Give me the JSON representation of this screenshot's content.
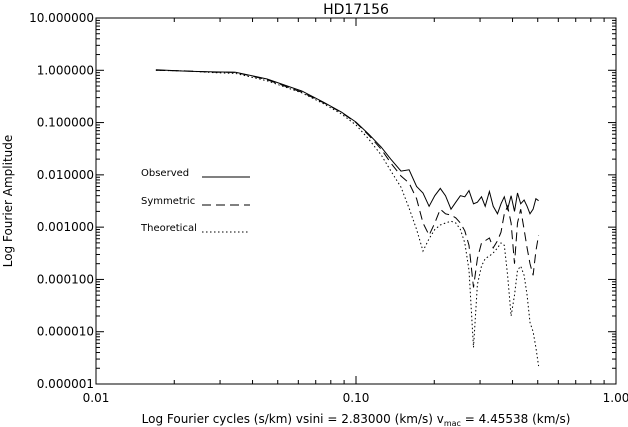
{
  "chart_data": {
    "type": "line",
    "title": "HD17156",
    "xlabel": {
      "prefix": "Log Fourier cycles (s/km) vsini = 2.83000 (km/s) v",
      "subscript": "mac",
      "suffix": " = 4.45538 (km/s)"
    },
    "ylabel": "Log Fourier Amplitude",
    "x_scale": "log",
    "y_scale": "log",
    "xlim": [
      0.01,
      1.0
    ],
    "ylim": [
      1e-06,
      10.0
    ],
    "x_ticks": [
      {
        "value": 0.01,
        "label": "0.01"
      },
      {
        "value": 0.1,
        "label": "0.10"
      },
      {
        "value": 1.0,
        "label": "1.00"
      }
    ],
    "y_ticks": [
      {
        "value": 10,
        "label": "10.000000"
      },
      {
        "value": 1,
        "label": "1.000000"
      },
      {
        "value": 0.1,
        "label": "0.100000"
      },
      {
        "value": 0.01,
        "label": "0.010000"
      },
      {
        "value": 0.001,
        "label": "0.001000"
      },
      {
        "value": 0.0001,
        "label": "0.000100"
      },
      {
        "value": 1e-05,
        "label": "0.000010"
      },
      {
        "value": 1e-06,
        "label": "0.000001"
      }
    ],
    "grid": false,
    "legend_position": "left-middle",
    "series": [
      {
        "name": "Observed",
        "dash": "solid",
        "x": [
          0.017,
          0.0225,
          0.0285,
          0.0344,
          0.0455,
          0.062,
          0.075,
          0.088,
          0.1,
          0.112,
          0.125,
          0.136,
          0.149,
          0.16,
          0.171,
          0.181,
          0.191,
          0.201,
          0.211,
          0.221,
          0.232,
          0.242,
          0.252,
          0.262,
          0.272,
          0.283,
          0.293,
          0.304,
          0.314,
          0.326,
          0.337,
          0.35,
          0.361,
          0.372,
          0.383,
          0.395,
          0.407,
          0.418,
          0.43,
          0.443,
          0.455,
          0.467,
          0.48,
          0.492,
          0.504
        ],
        "y": [
          1.02,
          0.96,
          0.93,
          0.92,
          0.68,
          0.4,
          0.245,
          0.158,
          0.102,
          0.06,
          0.034,
          0.02,
          0.0118,
          0.0125,
          0.006,
          0.0045,
          0.0025,
          0.004,
          0.0055,
          0.004,
          0.0022,
          0.003,
          0.004,
          0.0038,
          0.005,
          0.0028,
          0.003,
          0.0038,
          0.0025,
          0.0048,
          0.0025,
          0.0018,
          0.0028,
          0.0038,
          0.0022,
          0.004,
          0.002,
          0.0045,
          0.0028,
          0.0033,
          0.0025,
          0.0018,
          0.0022,
          0.0035,
          0.0032
        ]
      },
      {
        "name": "Symmetric",
        "dash": "dashed",
        "x": [
          0.017,
          0.0225,
          0.0285,
          0.0344,
          0.0455,
          0.062,
          0.075,
          0.088,
          0.1,
          0.112,
          0.125,
          0.136,
          0.149,
          0.16,
          0.171,
          0.181,
          0.191,
          0.201,
          0.211,
          0.221,
          0.232,
          0.242,
          0.252,
          0.262,
          0.272,
          0.283,
          0.293,
          0.304,
          0.314,
          0.326,
          0.337,
          0.35,
          0.361,
          0.372,
          0.383,
          0.395,
          0.407,
          0.418,
          0.43,
          0.443,
          0.455,
          0.467,
          0.48,
          0.492,
          0.504
        ],
        "y": [
          1.0,
          0.97,
          0.92,
          0.91,
          0.66,
          0.38,
          0.24,
          0.155,
          0.1,
          0.057,
          0.031,
          0.017,
          0.0095,
          0.007,
          0.0035,
          0.0012,
          0.0007,
          0.0012,
          0.0022,
          0.0018,
          0.0017,
          0.0015,
          0.0012,
          0.00085,
          0.00045,
          7e-05,
          0.00025,
          0.0005,
          0.00055,
          0.00062,
          0.0004,
          0.00055,
          0.0008,
          0.0018,
          0.0025,
          0.0012,
          0.0002,
          0.0012,
          0.0022,
          0.0009,
          0.0004,
          0.0002,
          0.00012,
          0.00035,
          0.0007
        ]
      },
      {
        "name": "Theoretical",
        "dash": "dotted",
        "x": [
          0.017,
          0.0225,
          0.0285,
          0.0344,
          0.0455,
          0.062,
          0.075,
          0.088,
          0.1,
          0.112,
          0.125,
          0.136,
          0.149,
          0.16,
          0.171,
          0.181,
          0.191,
          0.201,
          0.211,
          0.221,
          0.232,
          0.242,
          0.252,
          0.262,
          0.272,
          0.283,
          0.293,
          0.304,
          0.314,
          0.326,
          0.337,
          0.35,
          0.361,
          0.372,
          0.383,
          0.395,
          0.407,
          0.418,
          0.43,
          0.443,
          0.455,
          0.467,
          0.48,
          0.492,
          0.504
        ],
        "y": [
          1.0,
          0.97,
          0.9,
          0.87,
          0.63,
          0.37,
          0.23,
          0.145,
          0.09,
          0.048,
          0.024,
          0.012,
          0.0058,
          0.0023,
          0.0009,
          0.00035,
          0.0006,
          0.0009,
          0.0011,
          0.0012,
          0.0013,
          0.0012,
          0.0009,
          0.0005,
          0.00015,
          5e-06,
          8e-05,
          0.00018,
          0.00025,
          0.00028,
          0.00032,
          0.0004,
          0.0005,
          0.00045,
          0.00012,
          2e-05,
          5e-05,
          0.00015,
          0.00018,
          0.00012,
          5e-05,
          1.5e-05,
          1e-05,
          5e-06,
          2.2e-06
        ]
      }
    ]
  }
}
